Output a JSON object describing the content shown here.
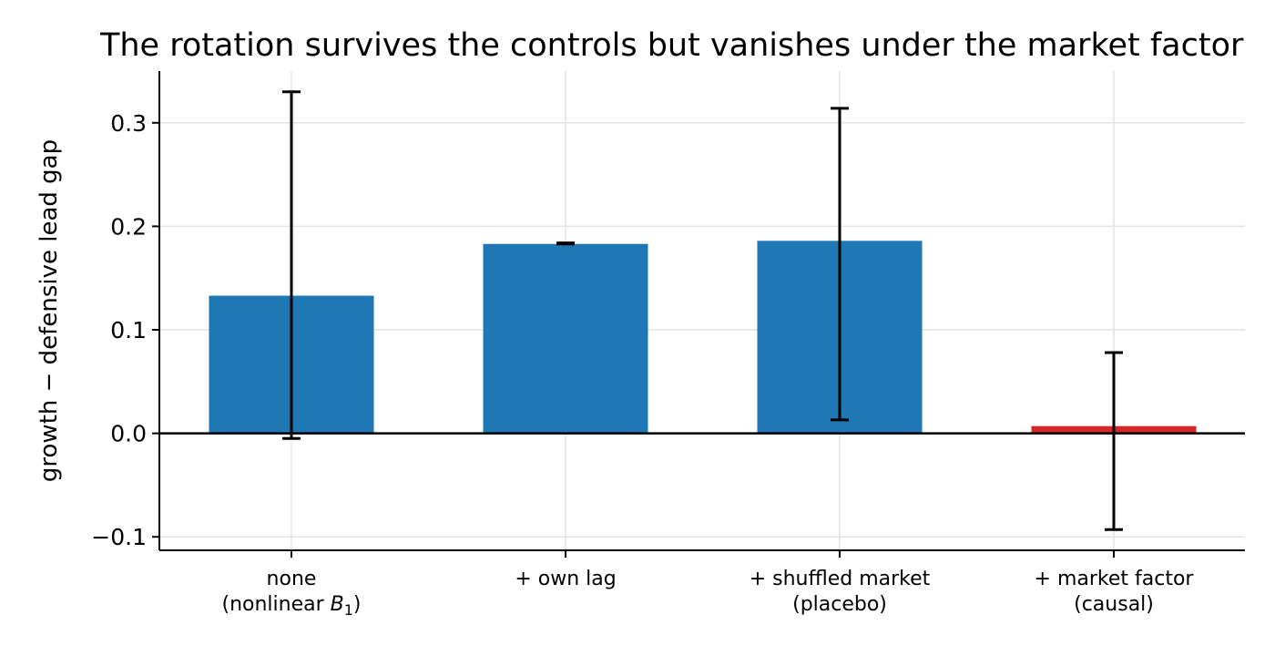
{
  "chart_data": {
    "type": "bar",
    "title": "The rotation survives the controls but vanishes under the market factor",
    "xlabel": "",
    "ylabel": "growth − defensive lead gap",
    "ylim": [
      -0.113,
      0.35
    ],
    "yticks": [
      -0.1,
      0.0,
      0.1,
      0.2,
      0.3
    ],
    "ytick_labels": [
      "−0.1",
      "0.0",
      "0.1",
      "0.2",
      "0.3"
    ],
    "categories": [
      {
        "line1": "none",
        "line2_pre": "(nonlinear ",
        "line2_math": "B",
        "line2_sub": "1",
        "line2_post": ")"
      },
      {
        "line1": "+ own lag",
        "line2_pre": "",
        "line2_math": "",
        "line2_sub": "",
        "line2_post": ""
      },
      {
        "line1": "+ shuffled market",
        "line2_pre": "(placebo)",
        "line2_math": "",
        "line2_sub": "",
        "line2_post": ""
      },
      {
        "line1": "+ market factor",
        "line2_pre": "(causal)",
        "line2_math": "",
        "line2_sub": "",
        "line2_post": ""
      }
    ],
    "values": [
      0.133,
      0.183,
      0.186,
      0.007
    ],
    "error_low": [
      -0.005,
      0.183,
      0.013,
      -0.093
    ],
    "error_high": [
      0.33,
      0.184,
      0.314,
      0.078
    ],
    "bar_colors": [
      "#1f77b4",
      "#1f77b4",
      "#1f77b4",
      "#d62728"
    ],
    "grid": true,
    "zero_line": true
  }
}
